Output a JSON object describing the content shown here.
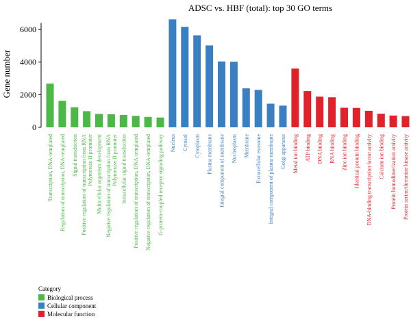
{
  "chart_data": {
    "type": "bar",
    "title": "ADSC vs. HBF (total): top 30 GO terms",
    "xlabel": "",
    "ylabel": "Gene number",
    "ylim": [
      0,
      6800
    ],
    "yticks": [
      0,
      2000,
      4000,
      6000
    ],
    "ytick_labels": [
      "0",
      "2000",
      "4000",
      "6000"
    ],
    "grid": false,
    "legend": {
      "title": "Category",
      "placement": "bottom-left",
      "entries": [
        {
          "label": "Biological process",
          "color": "#4cb848"
        },
        {
          "label": "Cellular component",
          "color": "#3a7fc1"
        },
        {
          "label": "Molecular function",
          "color": "#e0222a"
        }
      ]
    },
    "categories": [
      "Transcription, DNA-templated",
      "Regulation of transcription, DNA-templated",
      "Signal transduction",
      "Positive regulation of transcription from RNA\nPolymerase II promoter",
      "Multicellular organism development",
      "Negative regulation of transcription from RNA\nPolymerase II promoter",
      "Intracellular signal transduction",
      "Positive regulation of transcription, DNA-templated",
      "Negative regulation of transcription, DNA-templated",
      "G-protein-coupled receptor signaling pathway",
      "Nucleus",
      "Cytosol",
      "Cytoplasm",
      "Plasma membrane",
      "Integral component of membrane",
      "Nucleoplasm",
      "Membrane",
      "Extracellular exosome",
      "Integral component of plasma membrane",
      "Golgi apparatus",
      "Metal ion binding",
      "ATP binding",
      "DNA binding",
      "RNA binding",
      "Zinc ion binding",
      "Identical protein binding",
      "DNA-binding transcription factor activity",
      "Calcium ion binding",
      "Protein homodimerization activity",
      "Protein serine/threonine kinase activity"
    ],
    "groups": [
      "Biological process",
      "Biological process",
      "Biological process",
      "Biological process",
      "Biological process",
      "Biological process",
      "Biological process",
      "Biological process",
      "Biological process",
      "Biological process",
      "Cellular component",
      "Cellular component",
      "Cellular component",
      "Cellular component",
      "Cellular component",
      "Cellular component",
      "Cellular component",
      "Cellular component",
      "Cellular component",
      "Cellular component",
      "Molecular function",
      "Molecular function",
      "Molecular function",
      "Molecular function",
      "Molecular function",
      "Molecular function",
      "Molecular function",
      "Molecular function",
      "Molecular function",
      "Molecular function"
    ],
    "values": [
      2680,
      1620,
      1230,
      990,
      820,
      800,
      760,
      700,
      640,
      600,
      6620,
      6160,
      5640,
      5020,
      4040,
      4020,
      2390,
      2290,
      1450,
      1330,
      3600,
      2220,
      1880,
      1840,
      1200,
      1190,
      1010,
      830,
      720,
      690
    ],
    "colors": {
      "Biological process": "#4cb848",
      "Cellular component": "#3a7fc1",
      "Molecular function": "#e0222a"
    }
  }
}
